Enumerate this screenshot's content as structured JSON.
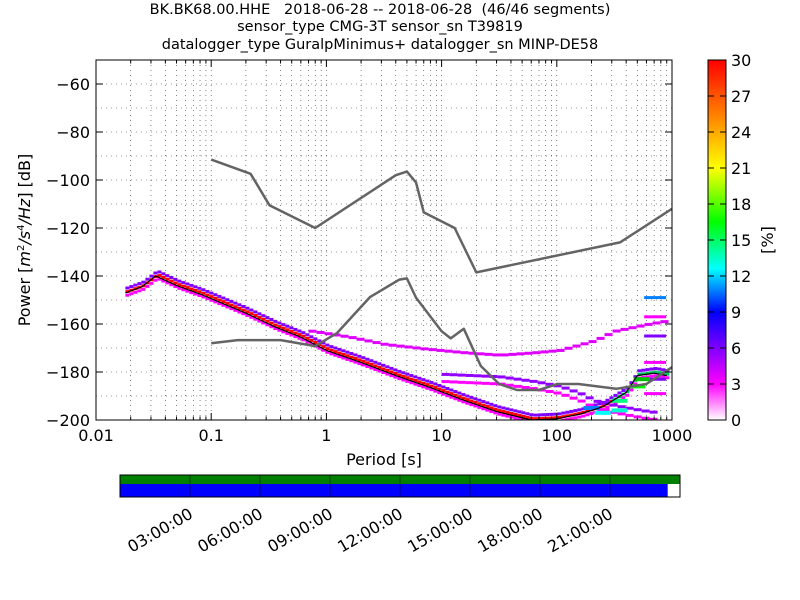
{
  "chart_data": {
    "type": "heatmap",
    "title_lines": [
      "BK.BK68.00.HHE   2018-06-28 -- 2018-06-28  (46/46 segments)",
      "sensor_type CMG-3T sensor_sn T39819",
      "datalogger_type GuralpMinimus+ datalogger_sn MINP-DE58"
    ],
    "xlabel": "Period [s]",
    "ylabel": "Power [m²/s⁴/Hz] [dB]",
    "x_scale": "log",
    "xlim": [
      0.01,
      1000
    ],
    "ylim": [
      -200,
      -50
    ],
    "x_ticks": [
      0.01,
      0.1,
      1,
      10,
      100,
      1000
    ],
    "x_tick_labels": [
      "0.01",
      "0.1",
      "1",
      "10",
      "100",
      "1000"
    ],
    "y_ticks": [
      -60,
      -80,
      -100,
      -120,
      -140,
      -160,
      -180,
      -200
    ],
    "y_tick_labels": [
      "−60",
      "−80",
      "−100",
      "−120",
      "−140",
      "−160",
      "−180",
      "−200"
    ],
    "grid": true,
    "colorbar": {
      "label": "[%]",
      "range": [
        0,
        30
      ],
      "ticks": [
        0,
        3,
        6,
        9,
        12,
        15,
        18,
        21,
        24,
        27,
        30
      ],
      "tick_labels": [
        "0",
        "3",
        "6",
        "9",
        "12",
        "15",
        "18",
        "21",
        "24",
        "27",
        "30"
      ]
    },
    "noise_models": [
      {
        "points": [
          [
            0.1,
            -91.5
          ],
          [
            0.22,
            -97.4
          ],
          [
            0.32,
            -110.5
          ],
          [
            0.8,
            -120
          ],
          [
            4,
            -98
          ],
          [
            5,
            -96.5
          ],
          [
            6,
            -101
          ],
          [
            7,
            -113.5
          ],
          [
            13,
            -120
          ],
          [
            20,
            -138.5
          ],
          [
            354,
            -126
          ],
          [
            1000,
            -112
          ]
        ]
      },
      {
        "points": [
          [
            0.1,
            -168
          ],
          [
            0.17,
            -166.7
          ],
          [
            0.4,
            -166.7
          ],
          [
            0.8,
            -169.2
          ],
          [
            1.24,
            -163.7
          ],
          [
            2.4,
            -148.7
          ],
          [
            4.3,
            -141.5
          ],
          [
            5,
            -141
          ],
          [
            6,
            -149
          ],
          [
            10,
            -163
          ],
          [
            12,
            -166
          ],
          [
            15.6,
            -162
          ],
          [
            21.9,
            -177.5
          ],
          [
            31.6,
            -185
          ],
          [
            45,
            -187.5
          ],
          [
            70,
            -187.5
          ],
          [
            101,
            -185
          ],
          [
            154,
            -185
          ],
          [
            328,
            -187
          ],
          [
            600,
            -185
          ],
          [
            1000,
            -178
          ]
        ]
      }
    ],
    "psd_mode": [
      [
        0.018,
        -146.5
      ],
      [
        0.025,
        -144
      ],
      [
        0.033,
        -139.5
      ],
      [
        0.05,
        -143.5
      ],
      [
        0.08,
        -147
      ],
      [
        0.12,
        -150.5
      ],
      [
        0.2,
        -155
      ],
      [
        0.35,
        -160.5
      ],
      [
        0.6,
        -165
      ],
      [
        1,
        -170.5
      ],
      [
        2,
        -175.5
      ],
      [
        4,
        -181
      ],
      [
        8,
        -186
      ],
      [
        15,
        -191
      ],
      [
        30,
        -196
      ],
      [
        60,
        -199.5
      ],
      [
        100,
        -199
      ],
      [
        160,
        -197
      ],
      [
        250,
        -194
      ],
      [
        400,
        -188
      ],
      [
        500,
        -181
      ],
      [
        700,
        -180
      ],
      [
        900,
        -181
      ]
    ],
    "psd_secondary": [
      [
        0.7,
        -163
      ],
      [
        1.5,
        -165.5
      ],
      [
        3,
        -168.5
      ],
      [
        7,
        -170.5
      ],
      [
        15,
        -172
      ],
      [
        30,
        -173
      ],
      [
        60,
        -172
      ],
      [
        100,
        -171
      ],
      [
        200,
        -167
      ],
      [
        300,
        -163
      ],
      [
        600,
        -160
      ],
      [
        800,
        -159
      ]
    ],
    "psd_low_branch": [
      [
        10,
        -181
      ],
      [
        30,
        -182
      ],
      [
        60,
        -184
      ],
      [
        100,
        -186
      ],
      [
        150,
        -189
      ],
      [
        200,
        -192
      ],
      [
        300,
        -194
      ],
      [
        500,
        -196
      ],
      [
        700,
        -197
      ]
    ],
    "psd_upper_branch": [
      [
        700,
        -149
      ],
      [
        700,
        -157
      ],
      [
        700,
        -165
      ],
      [
        700,
        -176
      ],
      [
        700,
        -183
      ],
      [
        700,
        -189
      ]
    ]
  },
  "timeline": {
    "tick_labels": [
      "03:00:00",
      "06:00:00",
      "09:00:00",
      "12:00:00",
      "15:00:00",
      "18:00:00",
      "21:00:00"
    ],
    "tick_hours": [
      3,
      6,
      9,
      12,
      15,
      18,
      21
    ],
    "span_hours": [
      0,
      24
    ],
    "data_coverage": [
      0,
      0.978
    ],
    "colors": {
      "available": "#008000",
      "used": "#0000ff"
    }
  }
}
